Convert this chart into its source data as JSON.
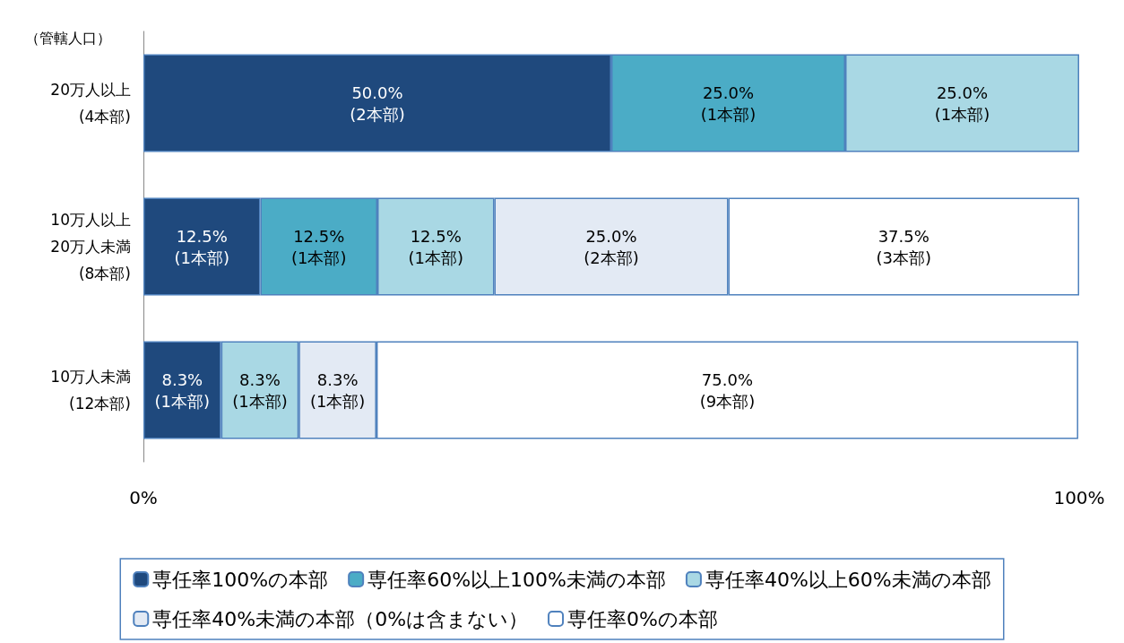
{
  "chart_data": {
    "type": "bar",
    "orientation": "horizontal",
    "stacked": true,
    "ylabel": "（管轄人口）",
    "categories": [
      "20万人以上\n(4本部)",
      "10万人以上\n20万人未満\n(8本部)",
      "10万人未満\n(12本部)"
    ],
    "series": [
      {
        "name": "専任率100%の本部",
        "color": "#1f497d",
        "values": [
          50.0,
          12.5,
          8.3
        ],
        "value_labels": [
          "50.0%\n(2本部)",
          "12.5%\n(1本部)",
          "8.3%\n(1本部)"
        ]
      },
      {
        "name": "専任率60%以上100%未満の本部",
        "color": "#4bacc6",
        "values": [
          25.0,
          12.5,
          0
        ],
        "value_labels": [
          "25.0%\n(1本部)",
          "12.5%\n(1本部)",
          null
        ]
      },
      {
        "name": "専任率40%以上60%未満の本部",
        "color": "#a9d8e4",
        "values": [
          25.0,
          12.5,
          8.3
        ],
        "value_labels": [
          "25.0%\n(1本部)",
          "12.5%\n(1本部)",
          "8.3%\n(1本部)"
        ]
      },
      {
        "name": "専任率40%未満の本部（0%は含まない）",
        "color": "#e3eaf4",
        "values": [
          0,
          25.0,
          8.3
        ],
        "value_labels": [
          null,
          "25.0%\n(2本部)",
          "8.3%\n(1本部)"
        ]
      },
      {
        "name": "専任率0%の本部",
        "color": "#ffffff",
        "values": [
          0,
          37.5,
          75.0
        ],
        "value_labels": [
          null,
          "37.5%\n(3本部)",
          "75.0%\n(9本部)"
        ]
      }
    ],
    "xlim": [
      0,
      100
    ],
    "xticks": [
      {
        "value": 0,
        "label": "0%"
      },
      {
        "value": 100,
        "label": "100%"
      }
    ],
    "grid": false,
    "legend": "bottom"
  }
}
